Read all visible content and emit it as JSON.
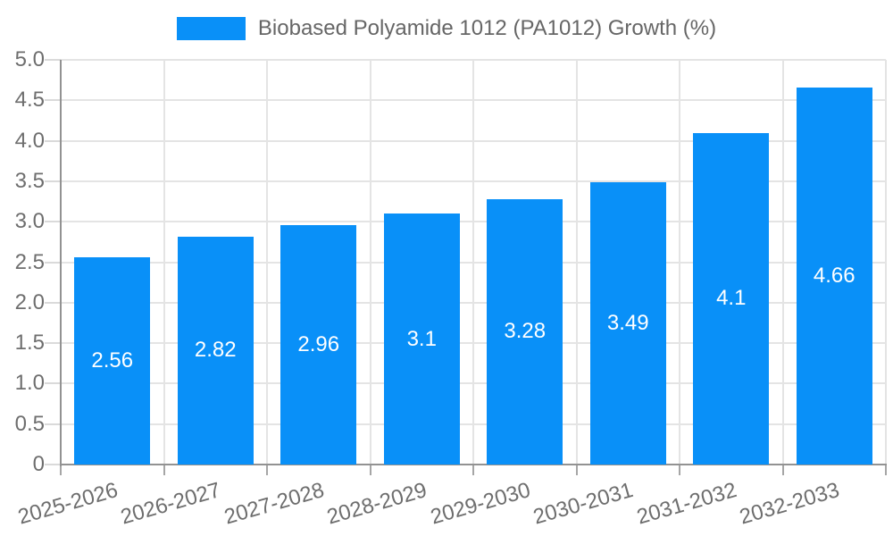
{
  "legend": {
    "label": "Biobased Polyamide 1012 (PA1012) Growth (%)"
  },
  "colors": {
    "bar": "#0990f8",
    "bar_value_text": "#ffffff",
    "legend_text": "#666666",
    "axis_text": "#6e6e6e",
    "gridline": "#e4e4e4",
    "axis_line": "#929292",
    "background": "#ffffff"
  },
  "chart_data": {
    "type": "bar",
    "title": "Biobased Polyamide 1012 (PA1012) Growth (%)",
    "categories": [
      "2025-2026",
      "2026-2027",
      "2027-2028",
      "2028-2029",
      "2029-2030",
      "2030-2031",
      "2031-2032",
      "2032-2033"
    ],
    "series": [
      {
        "name": "Biobased Polyamide 1012 (PA1012) Growth (%)",
        "values": [
          2.56,
          2.82,
          2.96,
          3.1,
          3.28,
          3.49,
          4.1,
          4.66
        ],
        "value_labels": [
          "2.56",
          "2.82",
          "2.96",
          "3.1",
          "3.28",
          "3.49",
          "4.1",
          "4.66"
        ],
        "color": "#0990f8"
      }
    ],
    "xlabel": "",
    "ylabel": "",
    "ylim": [
      0,
      5
    ],
    "ytick_step": 0.5,
    "ytick_labels": [
      "0",
      "0.5",
      "1.0",
      "1.5",
      "2.0",
      "2.5",
      "3.0",
      "3.5",
      "4.0",
      "4.5",
      "5.0"
    ],
    "grid": true,
    "value_labels_position": "inside-center",
    "legend_position": "top-center",
    "x_tick_rotation_deg": -16
  }
}
